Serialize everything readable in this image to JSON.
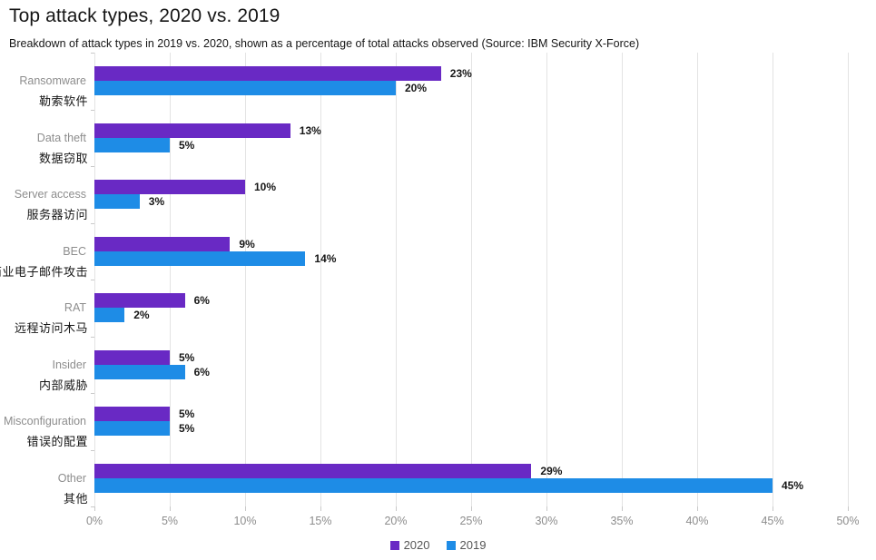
{
  "page": {
    "title": "Top attack types, 2020 vs. 2019",
    "subtitle": "Breakdown of attack types in 2019 vs. 2020, shown as a percentage of total attacks observed (Source: IBM Security X-Force)"
  },
  "colors": {
    "purple_2020": "#6929c4",
    "blue_2019": "#1e8ce6",
    "grid": "#e3e3e3",
    "tick": "#c9c9c9",
    "label_en": "#8d8d8d",
    "label_zh": "#161616",
    "axis_label": "#8d8d8d",
    "value_label": "#161616",
    "legend_text": "#565656"
  },
  "chart_data": {
    "type": "bar",
    "orientation": "horizontal",
    "title": "Top attack types, 2020 vs. 2019",
    "subtitle": "Breakdown of attack types in 2019 vs. 2020, shown as a percentage of total attacks observed (Source: IBM Security X-Force)",
    "categories_en": [
      "Ransomware",
      "Data theft",
      "Server access",
      "BEC",
      "RAT",
      "Insider",
      "Misconfiguration",
      "Other"
    ],
    "categories_zh": [
      "勒索软件",
      "数据窃取",
      "服务器访问",
      "商业电子邮件攻击",
      "远程访问木马",
      "内部威胁",
      "错误的配置",
      "其他"
    ],
    "series": [
      {
        "name": "2020",
        "color": "#6929c4",
        "values": [
          23,
          13,
          10,
          9,
          6,
          5,
          5,
          29
        ]
      },
      {
        "name": "2019",
        "color": "#1e8ce6",
        "values": [
          20,
          5,
          3,
          14,
          2,
          6,
          5,
          45
        ]
      }
    ],
    "value_suffix": "%",
    "x_axis": {
      "min": 0,
      "max": 50,
      "step": 5,
      "tick_labels": [
        "0%",
        "5%",
        "10%",
        "15%",
        "20%",
        "25%",
        "30%",
        "35%",
        "40%",
        "45%",
        "50%"
      ]
    },
    "grid": true,
    "legend_position": "bottom-center",
    "legend_items": [
      "2020",
      "2019"
    ]
  }
}
